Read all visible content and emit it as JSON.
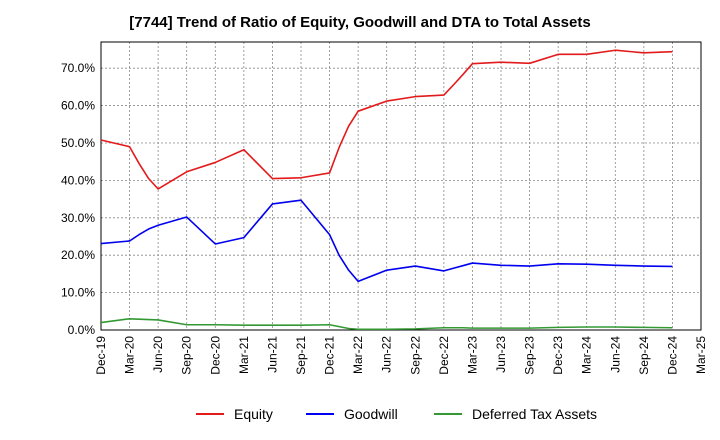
{
  "chart_data": {
    "type": "line",
    "title": "[7744]  Trend of Ratio of Equity, Goodwill and DTA to Total Assets",
    "xlabel": "",
    "ylabel": "",
    "x_ticks": [
      "Dec-19",
      "Mar-20",
      "Jun-20",
      "Sep-20",
      "Dec-20",
      "Mar-21",
      "Jun-21",
      "Sep-21",
      "Dec-21",
      "Mar-22",
      "Jun-22",
      "Sep-22",
      "Dec-22",
      "Mar-23",
      "Jun-23",
      "Sep-23",
      "Dec-23",
      "Mar-24",
      "Jun-24",
      "Sep-24",
      "Dec-24",
      "Mar-25"
    ],
    "y_ticks": [
      "0.0%",
      "10.0%",
      "20.0%",
      "30.0%",
      "40.0%",
      "50.0%",
      "60.0%",
      "70.0%"
    ],
    "ylim": [
      0,
      0.77
    ],
    "grid": true,
    "legend_position": "bottom-center",
    "x": [
      "Dec-19",
      "Mar-20",
      "Apr-20",
      "May-20",
      "Jun-20",
      "Sep-20",
      "Dec-20",
      "Mar-21",
      "Jun-21",
      "Sep-21",
      "Dec-21",
      "Jan-22",
      "Feb-22",
      "Mar-22",
      "Jun-22",
      "Sep-22",
      "Dec-22",
      "Jan-23",
      "Feb-23",
      "Mar-23",
      "Jun-23",
      "Sep-23",
      "Dec-23",
      "Mar-24",
      "Jun-24",
      "Sep-24",
      "Dec-24"
    ],
    "series": [
      {
        "name": "Equity",
        "color": "#e31a1c",
        "values": [
          0.508,
          0.49,
          0.445,
          0.405,
          0.377,
          0.423,
          0.448,
          0.482,
          0.405,
          0.407,
          0.42,
          0.488,
          0.545,
          0.585,
          0.612,
          0.624,
          0.628,
          0.655,
          0.683,
          0.712,
          0.716,
          0.713,
          0.737,
          0.737,
          0.748,
          0.741,
          0.744
        ]
      },
      {
        "name": "Goodwill",
        "color": "#0000ee",
        "values": [
          0.231,
          0.238,
          0.255,
          0.27,
          0.28,
          0.302,
          0.23,
          0.247,
          0.337,
          0.347,
          0.255,
          0.2,
          0.16,
          0.13,
          0.16,
          0.171,
          0.158,
          0.165,
          0.172,
          0.179,
          0.173,
          0.171,
          0.177,
          0.176,
          0.173,
          0.171,
          0.17
        ]
      },
      {
        "name": "Deferred Tax Assets",
        "color": "#339933",
        "values": [
          0.02,
          0.03,
          0.029,
          0.028,
          0.027,
          0.014,
          0.014,
          0.013,
          0.013,
          0.013,
          0.014,
          0.009,
          0.004,
          0.002,
          0.002,
          0.003,
          0.006,
          0.006,
          0.006,
          0.005,
          0.005,
          0.005,
          0.007,
          0.008,
          0.008,
          0.007,
          0.006
        ]
      }
    ]
  }
}
